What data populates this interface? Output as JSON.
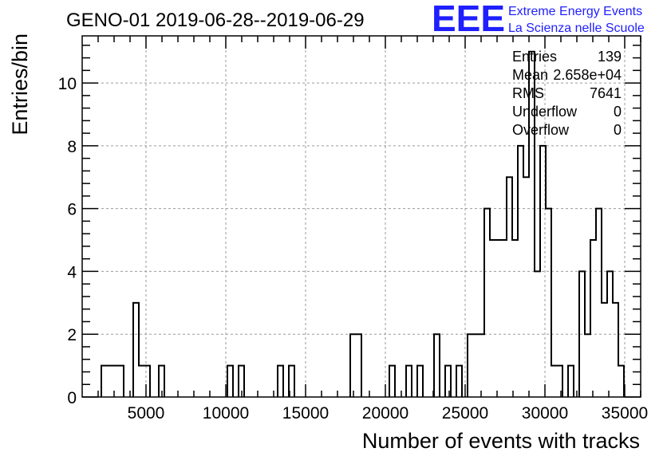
{
  "page": {
    "title": "GENO-01 2019-06-28--2019-06-29",
    "logo": {
      "mark": "EEE",
      "line1": "Extreme Energy Events",
      "line2": "La Scienza nelle Scuole"
    }
  },
  "stats": [
    {
      "label": "Entries",
      "value": "139"
    },
    {
      "label": "Mean",
      "value": "2.658e+04"
    },
    {
      "label": "RMS",
      "value": "7641"
    },
    {
      "label": "Underflow",
      "value": "0"
    },
    {
      "label": "Overflow",
      "value": "0"
    }
  ],
  "colors": {
    "line": "#000000",
    "grid": "#9a9a9a",
    "logo": "#1f1fff"
  },
  "chart_data": {
    "type": "bar",
    "subtype": "histogram",
    "xlabel": "Number of events with tracks",
    "ylabel": "Entries/bin",
    "xlim": [
      1000,
      36000
    ],
    "ylim": [
      0,
      11.5
    ],
    "xticks": [
      5000,
      10000,
      15000,
      20000,
      25000,
      30000,
      35000
    ],
    "yticks": [
      0,
      2,
      4,
      6,
      8,
      10
    ],
    "grid": true,
    "bin_width": 350,
    "bins": [
      {
        "x0": 2200,
        "x1": 3600,
        "count": 1
      },
      {
        "x0": 4200,
        "x1": 4550,
        "count": 3
      },
      {
        "x0": 4550,
        "x1": 5250,
        "count": 1
      },
      {
        "x0": 5800,
        "x1": 6150,
        "count": 1
      },
      {
        "x0": 10100,
        "x1": 10450,
        "count": 1
      },
      {
        "x0": 10800,
        "x1": 11150,
        "count": 1
      },
      {
        "x0": 13250,
        "x1": 13600,
        "count": 1
      },
      {
        "x0": 13950,
        "x1": 14300,
        "count": 1
      },
      {
        "x0": 17800,
        "x1": 18500,
        "count": 2
      },
      {
        "x0": 20250,
        "x1": 20600,
        "count": 1
      },
      {
        "x0": 21300,
        "x1": 21650,
        "count": 1
      },
      {
        "x0": 22000,
        "x1": 22350,
        "count": 1
      },
      {
        "x0": 23050,
        "x1": 23400,
        "count": 2
      },
      {
        "x0": 23750,
        "x1": 24100,
        "count": 1
      },
      {
        "x0": 24450,
        "x1": 24800,
        "count": 1
      },
      {
        "x0": 25150,
        "x1": 26200,
        "count": 2
      },
      {
        "x0": 26200,
        "x1": 26550,
        "count": 6
      },
      {
        "x0": 26550,
        "x1": 27600,
        "count": 5
      },
      {
        "x0": 27600,
        "x1": 27950,
        "count": 7
      },
      {
        "x0": 27950,
        "x1": 28300,
        "count": 5
      },
      {
        "x0": 28300,
        "x1": 28650,
        "count": 8
      },
      {
        "x0": 28650,
        "x1": 29000,
        "count": 7
      },
      {
        "x0": 29000,
        "x1": 29350,
        "count": 11
      },
      {
        "x0": 29350,
        "x1": 29700,
        "count": 4
      },
      {
        "x0": 29700,
        "x1": 30050,
        "count": 8
      },
      {
        "x0": 30050,
        "x1": 30400,
        "count": 6
      },
      {
        "x0": 30400,
        "x1": 31100,
        "count": 1
      },
      {
        "x0": 31450,
        "x1": 31800,
        "count": 1
      },
      {
        "x0": 32150,
        "x1": 32500,
        "count": 4
      },
      {
        "x0": 32500,
        "x1": 32850,
        "count": 2
      },
      {
        "x0": 32850,
        "x1": 33200,
        "count": 5
      },
      {
        "x0": 33200,
        "x1": 33550,
        "count": 6
      },
      {
        "x0": 33550,
        "x1": 33900,
        "count": 3
      },
      {
        "x0": 33900,
        "x1": 34250,
        "count": 4
      },
      {
        "x0": 34250,
        "x1": 34600,
        "count": 3
      },
      {
        "x0": 34600,
        "x1": 34950,
        "count": 1
      }
    ]
  }
}
